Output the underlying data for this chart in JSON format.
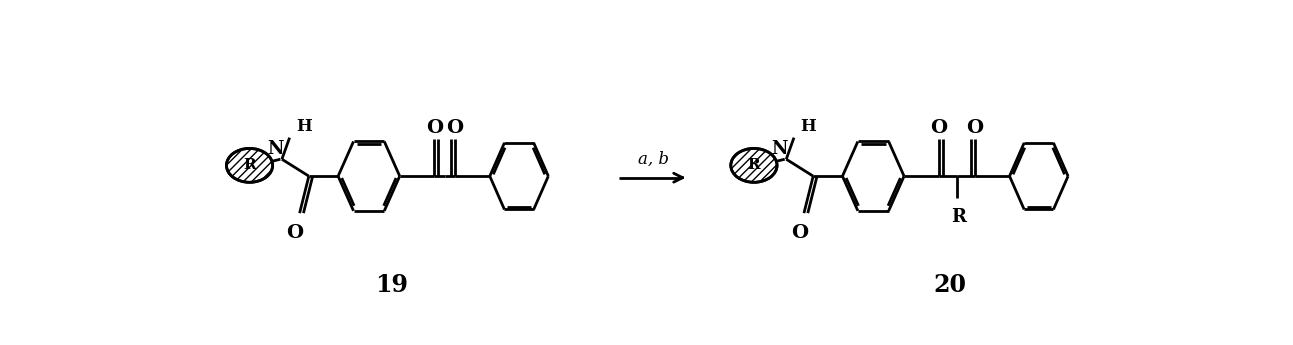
{
  "bg_color": "#ffffff",
  "line_color": "#000000",
  "lw": 2.0,
  "label_19": "19",
  "label_20": "20",
  "arrow_label": "a, b",
  "fig_width": 12.93,
  "fig_height": 3.45,
  "dpi": 100
}
